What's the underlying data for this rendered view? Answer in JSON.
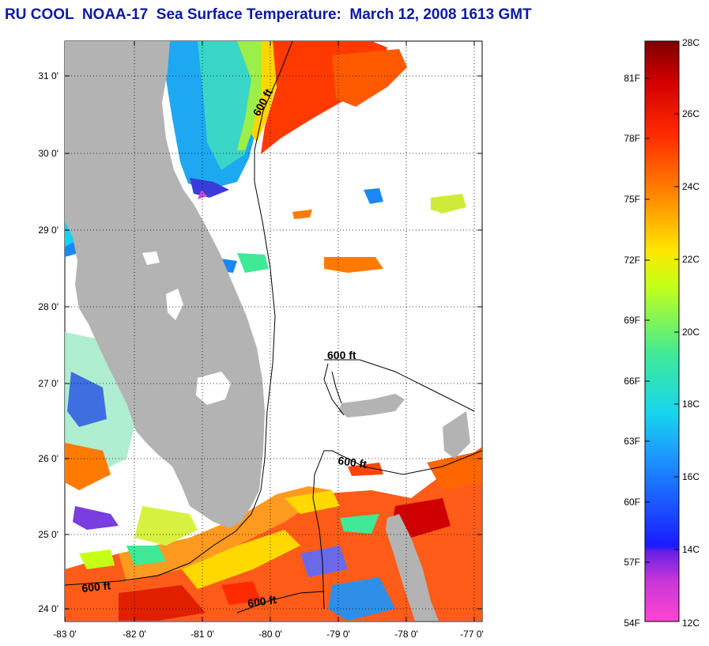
{
  "title": "RU COOL  NOAA-17  Sea Surface Temperature:  March 12, 2008 1613 GMT",
  "map": {
    "lon_labels": [
      "-83 0'",
      "-82 0'",
      "-81 0'",
      "-80 0'",
      "-79 0'",
      "-78 0'",
      "-77 0'"
    ],
    "lat_labels": [
      "31 0'",
      "30 0'",
      "29 0'",
      "28 0'",
      "27 0'",
      "26 0'",
      "25 0'",
      "24 0'"
    ],
    "lon_range": [
      -83,
      -76.85
    ],
    "lat_range": [
      23.75,
      31.45
    ],
    "contour_labels": [
      "600 ft",
      "600 ft",
      "600 ft",
      "600 ft",
      "600 ft"
    ]
  },
  "colorbar": {
    "f_labels": [
      "81F",
      "78F",
      "75F",
      "72F",
      "69F",
      "66F",
      "63F",
      "60F",
      "57F",
      "54F"
    ],
    "c_labels": [
      "28C",
      "26C",
      "24C",
      "22C",
      "20C",
      "18C",
      "16C",
      "14C",
      "12C"
    ],
    "c_range": [
      12,
      28
    ],
    "gradient_colors": [
      "#ff44d2",
      "#9b27d9",
      "#1a1bff",
      "#1c8cff",
      "#17d5ee",
      "#3fe996",
      "#c6ff16",
      "#ffe600",
      "#ff8c00",
      "#ff2a00",
      "#d10000",
      "#7d0000"
    ]
  }
}
